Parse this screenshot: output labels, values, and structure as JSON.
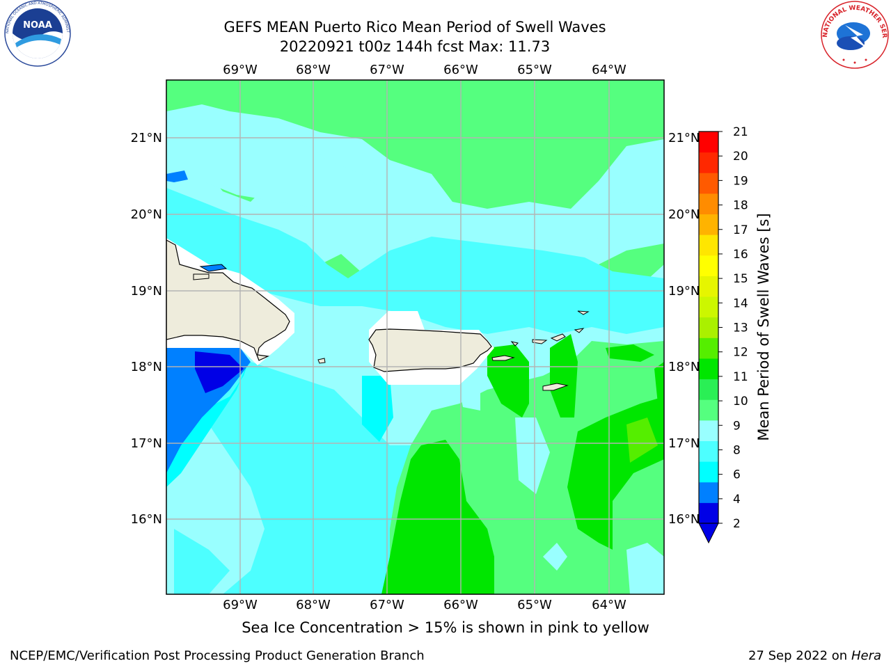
{
  "header": {
    "title_line1": "GEFS MEAN Puerto Rico Mean Period of Swell Waves",
    "title_line2": "20220921 t00z 144h fcst   Max: 11.73"
  },
  "logos": {
    "noaa": {
      "icon": "noaa-logo",
      "text": "NOAA",
      "ring_text": "NATIONAL OCEANIC AND ATMOSPHERIC ADMINISTRATION · U.S. DEPARTMENT OF COMMERCE"
    },
    "nws": {
      "icon": "nws-logo",
      "ring_text": "NATIONAL WEATHER SERVICE"
    }
  },
  "map": {
    "lon_labels": [
      "69°W",
      "68°W",
      "67°W",
      "66°W",
      "65°W",
      "64°W"
    ],
    "lat_labels": [
      "21°N",
      "20°N",
      "19°N",
      "18°N",
      "17°N",
      "16°N"
    ],
    "land_color": "#eeecdc",
    "max_value": 11.73
  },
  "colorbar": {
    "label": "Mean Period of Swell Waves [s]",
    "ticks": [
      "2",
      "4",
      "6",
      "8",
      "9",
      "10",
      "11",
      "12",
      "13",
      "14",
      "15",
      "16",
      "17",
      "18",
      "19",
      "20",
      "21"
    ],
    "colors": [
      "#0000e6",
      "#0080ff",
      "#00ffff",
      "#4dffff",
      "#99ffff",
      "#55ff7f",
      "#2aef55",
      "#00e600",
      "#55ee00",
      "#aaf000",
      "#ccf700",
      "#e6f500",
      "#ffff00",
      "#ffe600",
      "#ffb300",
      "#ff8c00",
      "#ff5a00",
      "#ff2800",
      "#ff0000"
    ],
    "extend_color": "#0000e6"
  },
  "note": "Sea Ice Concentration > 15% is shown in pink to yellow",
  "footer": {
    "left": "NCEP/EMC/Verification Post Processing Product Generation Branch",
    "right_date": "27 Sep 2022 on",
    "right_host": "Hera"
  }
}
